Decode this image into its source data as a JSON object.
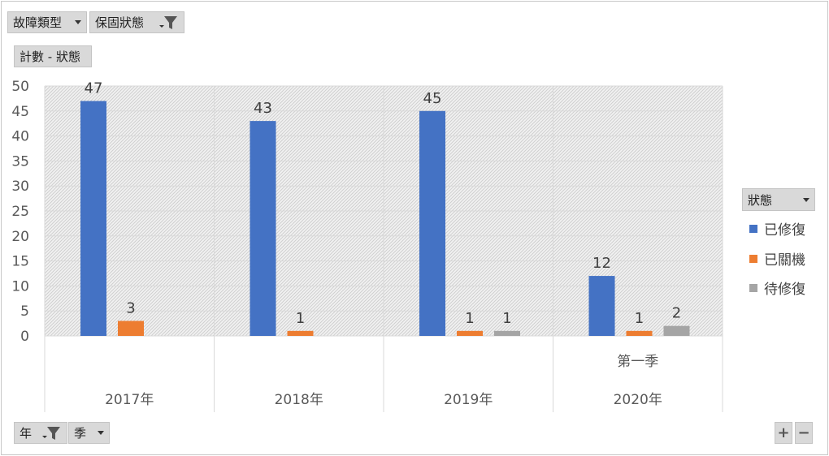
{
  "filters": {
    "fault_type": "故障類型",
    "warranty_status": "保固狀態",
    "value_field": "計數 - 狀態",
    "year": "年",
    "quarter": "季"
  },
  "legend": {
    "title": "狀態"
  },
  "zoom": {
    "plus": "+",
    "minus": "−"
  },
  "chart_data": {
    "type": "bar",
    "title": "",
    "categories": [
      "2017年",
      "2018年",
      "2019年",
      "2020年"
    ],
    "subcategories": [
      "",
      "",
      "",
      "第一季"
    ],
    "series": [
      {
        "name": "已修復",
        "color": "#4472c4",
        "values": [
          47,
          43,
          45,
          12
        ]
      },
      {
        "name": "已關機",
        "color": "#ed7d31",
        "values": [
          3,
          1,
          1,
          1
        ]
      },
      {
        "name": "待修復",
        "color": "#a5a5a5",
        "values": [
          null,
          null,
          1,
          2
        ]
      }
    ],
    "y_ticks": [
      0,
      5,
      10,
      15,
      20,
      25,
      30,
      35,
      40,
      45,
      50
    ],
    "ylim": [
      0,
      50
    ],
    "grid": true,
    "legend_position": "right"
  }
}
